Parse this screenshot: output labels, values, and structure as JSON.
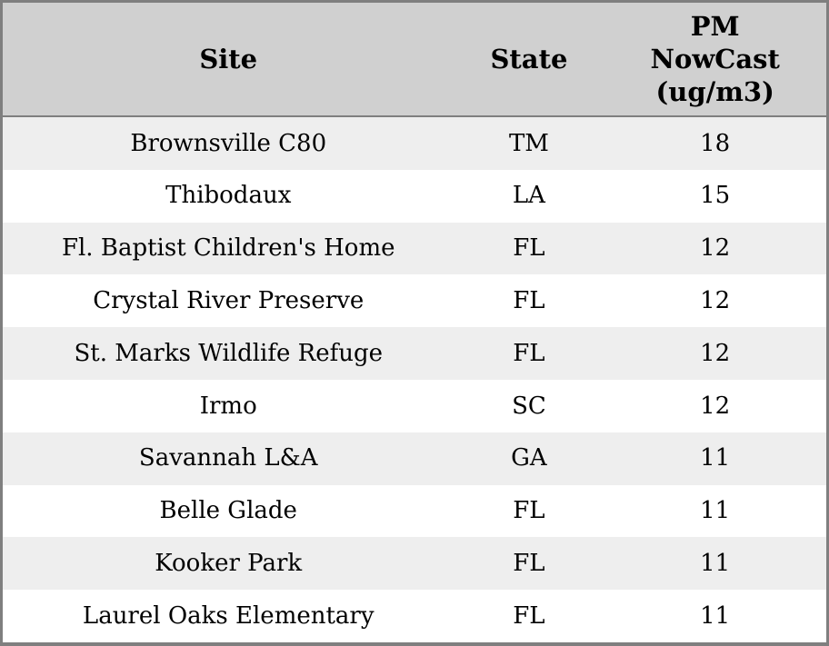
{
  "table": {
    "headers": {
      "site": "Site",
      "state": "State",
      "value": "PM\nNowCast\n(ug/m3)"
    },
    "rows": [
      {
        "site": "Brownsville C80",
        "state": "TM",
        "value": "18"
      },
      {
        "site": "Thibodaux",
        "state": "LA",
        "value": "15"
      },
      {
        "site": "Fl. Baptist Children's Home",
        "state": "FL",
        "value": "12"
      },
      {
        "site": "Crystal River Preserve",
        "state": "FL",
        "value": "12"
      },
      {
        "site": "St. Marks Wildlife Refuge",
        "state": "FL",
        "value": "12"
      },
      {
        "site": "Irmo",
        "state": "SC",
        "value": "12"
      },
      {
        "site": "Savannah L&A",
        "state": "GA",
        "value": "11"
      },
      {
        "site": "Belle Glade",
        "state": "FL",
        "value": "11"
      },
      {
        "site": "Kooker Park",
        "state": "FL",
        "value": "11"
      },
      {
        "site": "Laurel Oaks Elementary",
        "state": "FL",
        "value": "11"
      }
    ]
  },
  "chart_data": {
    "type": "table",
    "columns": [
      "Site",
      "State",
      "PM NowCast (ug/m3)"
    ],
    "rows": [
      [
        "Brownsville C80",
        "TM",
        18
      ],
      [
        "Thibodaux",
        "LA",
        15
      ],
      [
        "Fl. Baptist Children's Home",
        "FL",
        12
      ],
      [
        "Crystal River Preserve",
        "FL",
        12
      ],
      [
        "St. Marks Wildlife Refuge",
        "FL",
        12
      ],
      [
        "Irmo",
        "SC",
        12
      ],
      [
        "Savannah L&A",
        "GA",
        11
      ],
      [
        "Belle Glade",
        "FL",
        11
      ],
      [
        "Kooker Park",
        "FL",
        11
      ],
      [
        "Laurel Oaks Elementary",
        "FL",
        11
      ]
    ],
    "title": "",
    "layout_hints": {
      "header_background": "#d0d0d0",
      "row_alt_background": "#eeeeee",
      "row_background": "#ffffff",
      "border_color": "#7f7f7f",
      "text_color": "#000000",
      "alignment": "center"
    }
  }
}
